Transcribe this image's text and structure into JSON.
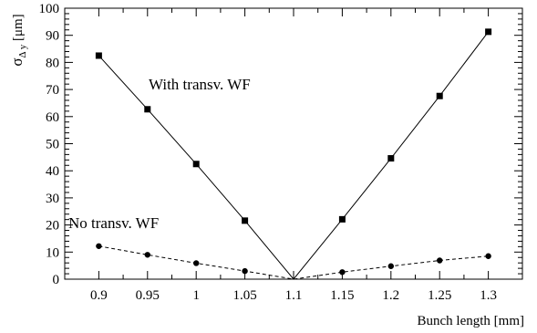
{
  "chart_data": {
    "type": "line",
    "xlabel": "Bunch length [mm]",
    "ylabel_main": "σ",
    "ylabel_sub": "Δ y",
    "ylabel_unit": " [μm]",
    "xlim": [
      0.865,
      1.335
    ],
    "ylim": [
      0,
      100
    ],
    "x_ticks": [
      0.9,
      0.95,
      1,
      1.05,
      1.1,
      1.15,
      1.2,
      1.25,
      1.3
    ],
    "x_tick_labels": [
      "0.9",
      "0.95",
      "1",
      "1.05",
      "1.1",
      "1.15",
      "1.2",
      "1.25",
      "1.3"
    ],
    "y_ticks": [
      0,
      10,
      20,
      30,
      40,
      50,
      60,
      70,
      80,
      90,
      100
    ],
    "y_tick_labels": [
      "0",
      "10",
      "20",
      "30",
      "40",
      "50",
      "60",
      "70",
      "80",
      "90",
      "100"
    ],
    "grid": false,
    "series": [
      {
        "name": "With transv. WF",
        "marker": "square",
        "line": "solid",
        "x": [
          0.9,
          0.95,
          1.0,
          1.05,
          1.1,
          1.15,
          1.2,
          1.25,
          1.3
        ],
        "y": [
          82.5,
          62.7,
          42.5,
          21.6,
          0.0,
          22.1,
          44.6,
          67.6,
          91.3
        ]
      },
      {
        "name": "No transv. WF",
        "marker": "circle",
        "line": "dashed",
        "x": [
          0.9,
          0.95,
          1.0,
          1.05,
          1.1,
          1.15,
          1.2,
          1.25,
          1.3
        ],
        "y": [
          12.2,
          9.0,
          5.9,
          3.0,
          0.0,
          2.6,
          4.8,
          6.9,
          8.5
        ]
      }
    ]
  }
}
